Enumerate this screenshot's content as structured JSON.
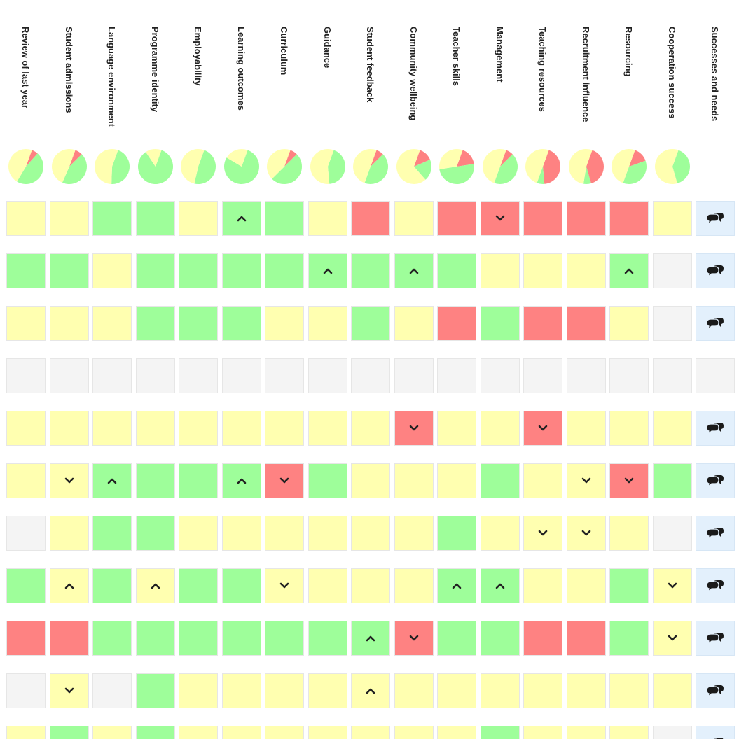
{
  "columns": [
    "Review of last year",
    "Student admissions",
    "Language environment",
    "Programme identity",
    "Employability",
    "Learning outcomes",
    "Curriculum",
    "Guidance",
    "Student feedback",
    "Community wellbeing",
    "Teacher skills",
    "Management",
    "Teaching resources",
    "Recruitment influence",
    "Resourcing",
    "Cooperation success",
    "Successes and needs"
  ],
  "colors": {
    "green": "#9efe9a",
    "yellow": "#ffffb0",
    "red": "#fe8282",
    "empty": "#f4f4f4",
    "comment": "#e3f0fc"
  },
  "legend_codes": {
    "G": "green",
    "Y": "yellow",
    "R": "red",
    "E": "empty",
    "Gu": "green with arrow-up-icon",
    "Yd": "yellow with arrow-down-icon",
    "C": "comment-icon",
    "X": "blank"
  },
  "pies": [
    {
      "green": 0.47,
      "yellow": 0.47,
      "red": 0.06
    },
    {
      "green": 0.44,
      "yellow": 0.49,
      "red": 0.07
    },
    {
      "green": 0.45,
      "yellow": 0.55,
      "red": 0.0
    },
    {
      "green": 0.85,
      "yellow": 0.15,
      "red": 0.0
    },
    {
      "green": 0.48,
      "yellow": 0.52,
      "red": 0.0
    },
    {
      "green": 0.78,
      "yellow": 0.22,
      "red": 0.0
    },
    {
      "green": 0.5,
      "yellow": 0.43,
      "red": 0.07
    },
    {
      "green": 0.43,
      "yellow": 0.57,
      "red": 0.0
    },
    {
      "green": 0.43,
      "yellow": 0.5,
      "red": 0.07
    },
    {
      "green": 0.2,
      "yellow": 0.67,
      "red": 0.13
    },
    {
      "green": 0.5,
      "yellow": 0.33,
      "red": 0.17
    },
    {
      "green": 0.43,
      "yellow": 0.5,
      "red": 0.07
    },
    {
      "green": 0.07,
      "yellow": 0.5,
      "red": 0.43
    },
    {
      "green": 0.07,
      "yellow": 0.53,
      "red": 0.4
    },
    {
      "green": 0.36,
      "yellow": 0.5,
      "red": 0.14
    },
    {
      "green": 0.4,
      "yellow": 0.6,
      "red": 0.0
    }
  ],
  "rows": [
    [
      "Y",
      "Y",
      "G",
      "G",
      "Y",
      "Gu",
      "G",
      "Y",
      "R",
      "Y",
      "R",
      "Rd",
      "R",
      "R",
      "R",
      "Y",
      "C"
    ],
    [
      "G",
      "G",
      "Y",
      "G",
      "G",
      "G",
      "G",
      "Gu",
      "G",
      "Gu",
      "G",
      "Y",
      "Y",
      "Y",
      "Gu",
      "E",
      "C"
    ],
    [
      "Y",
      "Y",
      "Y",
      "G",
      "G",
      "G",
      "Y",
      "Y",
      "G",
      "Y",
      "R",
      "G",
      "R",
      "R",
      "Y",
      "E",
      "C"
    ],
    [
      "E",
      "E",
      "E",
      "E",
      "E",
      "E",
      "E",
      "E",
      "E",
      "E",
      "E",
      "E",
      "E",
      "E",
      "E",
      "E",
      "E"
    ],
    [
      "Y",
      "Y",
      "Y",
      "Y",
      "Y",
      "Y",
      "Y",
      "Y",
      "Y",
      "Rd",
      "Y",
      "Y",
      "Rd",
      "Y",
      "Y",
      "Y",
      "C"
    ],
    [
      "Y",
      "Yd",
      "Gu",
      "G",
      "G",
      "Gu",
      "Rd",
      "G",
      "Y",
      "Y",
      "Y",
      "G",
      "Y",
      "Yd",
      "Rd",
      "G",
      "C"
    ],
    [
      "E",
      "Y",
      "G",
      "G",
      "Y",
      "Y",
      "Y",
      "Y",
      "Y",
      "Y",
      "G",
      "Y",
      "Yd",
      "Yd",
      "Y",
      "E",
      "C"
    ],
    [
      "G",
      "Yu",
      "G",
      "Yu",
      "G",
      "G",
      "Yd",
      "Y",
      "Y",
      "Y",
      "Gu",
      "Gu",
      "Y",
      "Y",
      "G",
      "Yd",
      "C"
    ],
    [
      "R",
      "R",
      "G",
      "G",
      "G",
      "G",
      "G",
      "G",
      "Gu",
      "Rd",
      "G",
      "G",
      "R",
      "R",
      "G",
      "Yd",
      "C"
    ],
    [
      "E",
      "Yd",
      "E",
      "G",
      "Y",
      "Y",
      "Y",
      "Y",
      "Yu",
      "Y",
      "Y",
      "Y",
      "Y",
      "Y",
      "Y",
      "Y",
      "C"
    ],
    [
      "Y",
      "G",
      "Y",
      "G",
      "Y",
      "Y",
      "Y",
      "Y",
      "Y",
      "Y",
      "Y",
      "G",
      "Y",
      "Y",
      "Y",
      "E",
      "C"
    ]
  ]
}
